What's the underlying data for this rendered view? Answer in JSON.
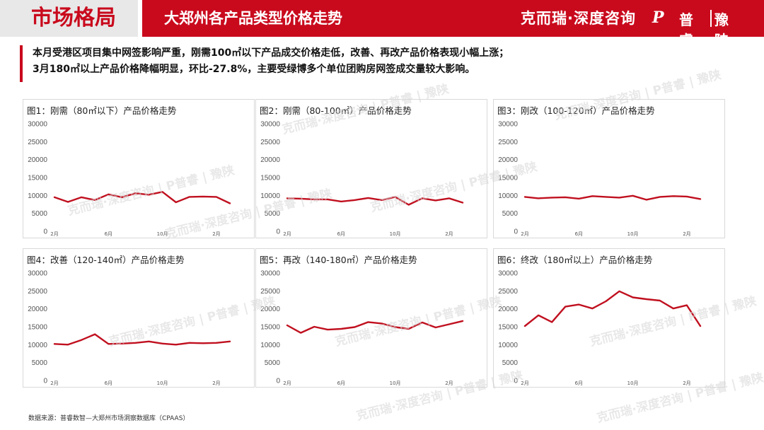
{
  "header": {
    "section": "市场格局",
    "title": "大郑州各产品类型价格走势",
    "brand_cr": "克而瑞·深度咨询",
    "brand_logo_p": "P",
    "brand_logo_name": "普睿",
    "brand_logo_region": "豫陕"
  },
  "summary": {
    "line1": "本月受港区项目集中网签影响严重，刚需100㎡以下产品成交价格走低，改善、再改产品价格表现小幅上涨；",
    "line2": "3月180㎡以上产品价格降幅明显，环比-27.8%，主要受绿博多个单位团购房网签成交量较大影响。"
  },
  "source": "数据来源：普睿数智—大郑州市场洞察数据库（CPAAS）",
  "watermark": "克而瑞·深度咨询 | P普睿 | 豫陕",
  "colors": {
    "accent": "#c90a1d",
    "line": "#c0101f"
  },
  "chart_data": [
    {
      "type": "line",
      "title": "图1：刚需（80㎡以下）产品价格走势",
      "x_tick_labels": [
        "2月",
        "6月",
        "10月",
        "2月"
      ],
      "x_tick_index": [
        0,
        4,
        8,
        12
      ],
      "ylim": [
        0,
        30000
      ],
      "y_ticks": [
        0,
        5000,
        10000,
        15000,
        20000,
        25000,
        30000
      ],
      "values": [
        9500,
        8200,
        9500,
        8700,
        10300,
        9500,
        10600,
        10200,
        11000,
        8100,
        9600,
        9700,
        9600,
        7800
      ]
    },
    {
      "type": "line",
      "title": "图2：刚需（80-100㎡）产品价格走势",
      "x_tick_labels": [
        "2月",
        "6月",
        "10月",
        "2月"
      ],
      "x_tick_index": [
        0,
        4,
        8,
        12
      ],
      "ylim": [
        0,
        30000
      ],
      "y_ticks": [
        0,
        5000,
        10000,
        15000,
        20000,
        25000,
        30000
      ],
      "values": [
        9200,
        9100,
        8900,
        8900,
        8300,
        8700,
        9300,
        8700,
        9600,
        7400,
        9200,
        8600,
        9200,
        8000
      ]
    },
    {
      "type": "line",
      "title": "图3：刚改（100-120㎡）产品价格走势",
      "x_tick_labels": [
        "2月",
        "6月",
        "10月",
        "2月"
      ],
      "x_tick_index": [
        0,
        4,
        8,
        12
      ],
      "ylim": [
        0,
        30000
      ],
      "y_ticks": [
        0,
        5000,
        10000,
        15000,
        20000,
        25000,
        30000
      ],
      "values": [
        9600,
        9200,
        9400,
        9500,
        9100,
        9800,
        9600,
        9400,
        9900,
        8800,
        9600,
        9800,
        9700,
        9000
      ]
    },
    {
      "type": "line",
      "title": "图4：改善（120-140㎡）产品价格走势",
      "x_tick_labels": [
        "2月",
        "6月",
        "10月",
        "2月"
      ],
      "x_tick_index": [
        0,
        4,
        8,
        12
      ],
      "ylim": [
        0,
        30000
      ],
      "y_ticks": [
        0,
        5000,
        10000,
        15000,
        20000,
        25000,
        30000
      ],
      "values": [
        10200,
        10000,
        11300,
        12900,
        10200,
        10300,
        10500,
        10900,
        10300,
        10000,
        10500,
        10400,
        10500,
        10900
      ]
    },
    {
      "type": "line",
      "title": "图5：再改（140-180㎡）产品价格走势",
      "x_tick_labels": [
        "2月",
        "6月",
        "10月",
        "2月"
      ],
      "x_tick_index": [
        0,
        4,
        8,
        12
      ],
      "ylim": [
        0,
        30000
      ],
      "y_ticks": [
        0,
        5000,
        10000,
        15000,
        20000,
        25000,
        30000
      ],
      "values": [
        15400,
        13300,
        15000,
        14200,
        14400,
        14900,
        16300,
        15900,
        14900,
        14400,
        16200,
        14800,
        15700,
        16600
      ]
    },
    {
      "type": "line",
      "title": "图6：终改（180㎡以上）产品价格走势",
      "x_tick_labels": [
        "2月",
        "6月",
        "10月",
        "2月"
      ],
      "x_tick_index": [
        0,
        4,
        8,
        12
      ],
      "ylim": [
        0,
        30000
      ],
      "y_ticks": [
        0,
        5000,
        10000,
        15000,
        20000,
        25000,
        30000
      ],
      "values": [
        15200,
        18200,
        16300,
        20600,
        21200,
        20100,
        22100,
        24900,
        23200,
        22700,
        22300,
        20100,
        21000,
        15200
      ]
    }
  ]
}
